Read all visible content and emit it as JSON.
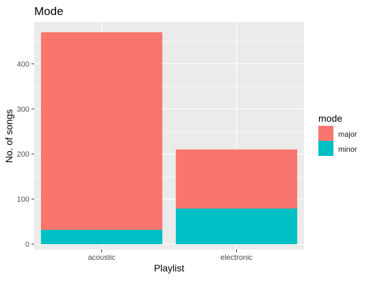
{
  "chart_data": {
    "type": "bar",
    "stacked": true,
    "title": "Mode",
    "xlabel": "Playlist",
    "ylabel": "No. of songs",
    "categories": [
      "acoustic",
      "electronic"
    ],
    "series": [
      {
        "name": "major",
        "color": "#F8766D",
        "values": [
          438,
          131
        ]
      },
      {
        "name": "minor",
        "color": "#00BFC4",
        "values": [
          32,
          79
        ]
      }
    ],
    "totals": [
      470,
      210
    ],
    "ylim": [
      -12,
      493
    ],
    "yticks": [
      0,
      100,
      200,
      300,
      400
    ],
    "grid": true,
    "legend": {
      "title": "mode",
      "position": "right",
      "items": [
        "major",
        "minor"
      ]
    }
  }
}
